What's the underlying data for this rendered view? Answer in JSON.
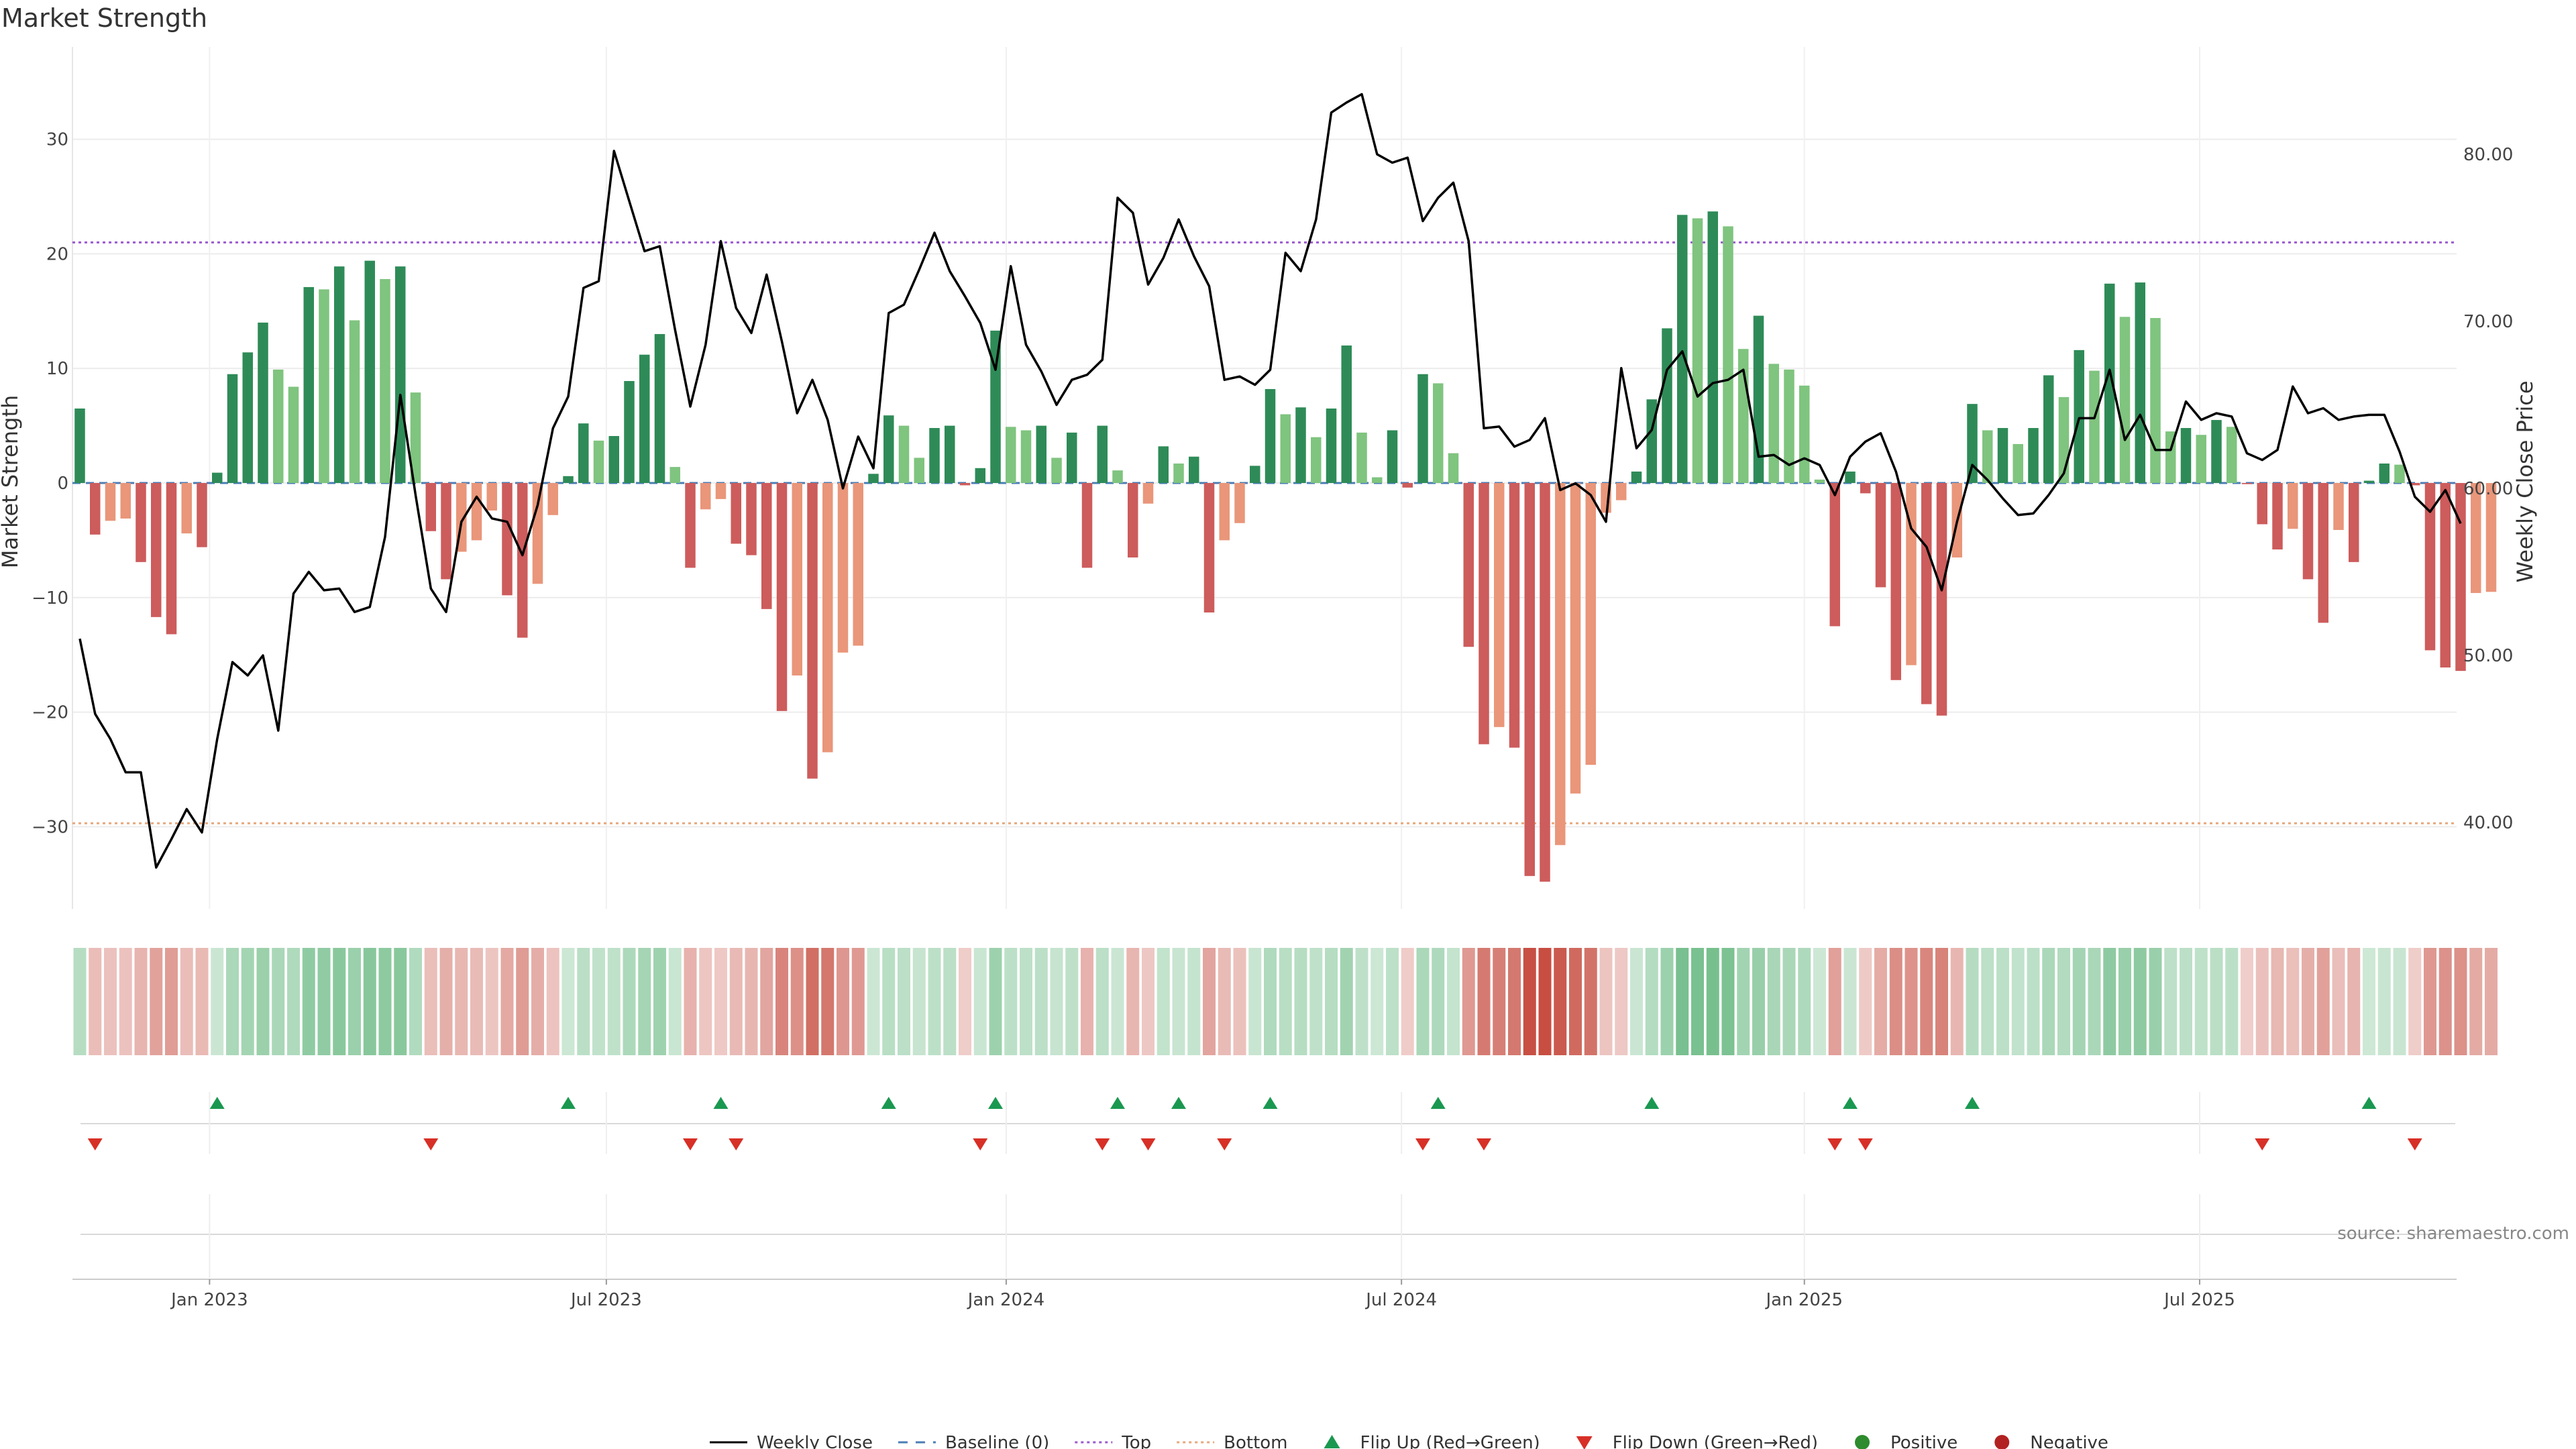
{
  "chart_data": {
    "type": "bar",
    "title": "Market Strength",
    "ylabel_left": "Market Strength",
    "ylabel_right": "Weekly Close Price",
    "source": "source: sharemaestro.com",
    "ylim_left": [
      -38,
      38
    ],
    "ylim_right": [
      34.4,
      85
    ],
    "left_ticks": [
      {
        "value": -30,
        "label": "−30"
      },
      {
        "value": -20,
        "label": "−20"
      },
      {
        "value": -10,
        "label": "−10"
      },
      {
        "value": 0,
        "label": "0"
      },
      {
        "value": 10,
        "label": "10"
      },
      {
        "value": 20,
        "label": "20"
      },
      {
        "value": 30,
        "label": "30"
      }
    ],
    "right_ticks": [
      {
        "value": 40,
        "label": "40.00"
      },
      {
        "value": 50,
        "label": "50.00"
      },
      {
        "value": 60,
        "label": "60.00"
      },
      {
        "value": 70,
        "label": "70.00"
      },
      {
        "value": 80,
        "label": "80.00"
      }
    ],
    "x_ticks": [
      {
        "index": 8.5,
        "label": "Jan 2023"
      },
      {
        "index": 34.5,
        "label": "Jul 2023"
      },
      {
        "index": 60.7,
        "label": "Jan 2024"
      },
      {
        "index": 86.6,
        "label": "Jul 2024"
      },
      {
        "index": 113,
        "label": "Jan 2025"
      },
      {
        "index": 138.9,
        "label": "Jul 2025"
      }
    ],
    "top_line": 21,
    "bottom_line": -29.7,
    "colors": {
      "strong_positive": "#2e8b57",
      "weak_positive": "#7fc47f",
      "strong_negative": "#cd5c5c",
      "weak_negative": "#e9967a",
      "price_line": "#000000",
      "baseline": "#4a7db5",
      "top": "#9b59d0",
      "bottom": "#e8a87c",
      "flip_up": "#1a9850",
      "flip_down": "#d73027",
      "positive": "#2e8b2e",
      "negative": "#b22222"
    },
    "strength": [
      6.5,
      -4.5,
      -3.3,
      -3.1,
      -6.9,
      -11.7,
      -13.2,
      -4.4,
      -5.6,
      0.9,
      9.5,
      11.4,
      14,
      9.9,
      8.4,
      17.1,
      16.9,
      18.9,
      14.2,
      19.4,
      17.8,
      18.9,
      7.9,
      -4.2,
      -8.4,
      -6,
      -5,
      -2.4,
      -9.8,
      -13.5,
      -8.8,
      -2.8,
      0.6,
      5.2,
      3.7,
      4.1,
      8.9,
      11.2,
      13,
      1.4,
      -7.4,
      -2.3,
      -1.4,
      -5.3,
      -6.3,
      -11,
      -19.9,
      -16.8,
      -25.8,
      -23.5,
      -14.8,
      -14.2,
      0.8,
      5.9,
      5,
      2.2,
      4.8,
      5,
      -0.2,
      1.3,
      13.3,
      4.9,
      4.6,
      5,
      2.2,
      4.4,
      -7.4,
      5,
      1.1,
      -6.5,
      -1.8,
      3.2,
      1.7,
      2.3,
      -11.3,
      -5,
      -3.5,
      1.5,
      8.2,
      6,
      6.6,
      4,
      6.5,
      12,
      4.4,
      0.5,
      4.6,
      -0.4,
      9.5,
      8.7,
      2.6,
      -14.3,
      -22.8,
      -21.3,
      -23.1,
      -34.3,
      -34.8,
      -31.6,
      -27.1,
      -24.6,
      -2.6,
      -1.5,
      1,
      7.3,
      13.5,
      23.4,
      23.1,
      23.7,
      22.4,
      11.7,
      14.6,
      10.4,
      9.9,
      8.5,
      0.3,
      -12.5,
      1,
      -0.9,
      -9.1,
      -17.2,
      -15.9,
      -19.3,
      -20.3,
      -6.5,
      6.9,
      4.6,
      4.8,
      3.4,
      4.8,
      9.4,
      7.5,
      11.6,
      9.8,
      17.4,
      14.5,
      17.5,
      14.4,
      4.5,
      4.8,
      4.2,
      5.5,
      4.9,
      -0.1,
      -3.6,
      -5.8,
      -4,
      -8.4,
      -12.2,
      -4.1,
      -6.9,
      0.2,
      1.7,
      1.6,
      -0.2,
      -14.6,
      -16.1,
      -16.4,
      -9.6,
      -9.5
    ],
    "price": [
      51,
      46.5,
      45,
      43,
      43,
      37.3,
      39,
      40.8,
      39.4,
      45,
      49.6,
      48.8,
      50,
      45.5,
      53.7,
      55,
      53.9,
      54,
      52.6,
      52.9,
      57.1,
      65.6,
      59.6,
      54,
      52.6,
      58,
      59.5,
      58.2,
      58,
      56,
      59,
      63.6,
      65.5,
      72,
      72.4,
      80.2,
      77.2,
      74.2,
      74.5,
      69.5,
      64.9,
      68.6,
      74.8,
      70.8,
      69.3,
      72.8,
      68.8,
      64.5,
      66.5,
      64.1,
      60,
      63.1,
      61.2,
      70.5,
      71,
      73.1,
      75.3,
      73,
      71.5,
      69.9,
      67.1,
      73.3,
      68.6,
      67,
      65,
      66.5,
      66.8,
      67.7,
      77.4,
      76.5,
      72.2,
      73.8,
      76.1,
      73.9,
      72.1,
      66.5,
      66.7,
      66.2,
      67.1,
      74.1,
      73,
      76.1,
      82.5,
      83.1,
      83.6,
      80,
      79.5,
      79.8,
      76,
      77.4,
      78.3,
      74.8,
      63.6,
      63.7,
      62.5,
      62.9,
      64.2,
      59.9,
      60.3,
      59.6,
      58,
      67.2,
      62.4,
      63.5,
      67.1,
      68.2,
      65.5,
      66.3,
      66.5,
      67.1,
      61.9,
      62,
      61.4,
      61.8,
      61.4,
      59.6,
      61.9,
      62.8,
      63.3,
      61,
      57.6,
      56.5,
      53.9,
      58,
      61.4,
      60.5,
      59.4,
      58.4,
      58.5,
      59.6,
      60.9,
      64.2,
      64.2,
      67.1,
      62.9,
      64.4,
      62.3,
      62.3,
      65.2,
      64.1,
      64.5,
      64.3,
      62.1,
      61.7,
      62.3,
      66.1,
      64.5,
      64.8,
      64.1,
      64.3,
      64.4,
      64.4,
      62.2,
      59.5,
      58.6,
      59.9,
      57.9
    ],
    "flip_up": [
      9,
      32,
      42,
      53,
      60,
      68,
      72,
      78,
      89,
      103,
      116,
      124,
      150
    ],
    "flip_down": [
      1,
      23,
      40,
      43,
      59,
      67,
      70,
      75,
      88,
      92,
      115,
      117,
      143,
      153
    ],
    "legend": [
      {
        "type": "line-solid",
        "label": "Weekly Close",
        "color": "#000000"
      },
      {
        "type": "line-dashed",
        "label": "Baseline (0)",
        "color": "#4a7db5"
      },
      {
        "type": "line-dotted",
        "label": "Top",
        "color": "#9b59d0"
      },
      {
        "type": "line-dotted",
        "label": "Bottom",
        "color": "#e8a87c"
      },
      {
        "type": "triangle-up",
        "label": "Flip Up (Red→Green)",
        "color": "#1a9850"
      },
      {
        "type": "triangle-down",
        "label": "Flip Down (Green→Red)",
        "color": "#d73027"
      },
      {
        "type": "circle",
        "label": "Positive",
        "color": "#2e8b2e"
      },
      {
        "type": "circle",
        "label": "Negative",
        "color": "#b22222"
      }
    ]
  }
}
